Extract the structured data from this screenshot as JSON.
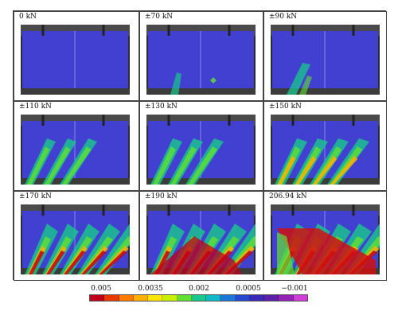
{
  "panels": [
    {
      "label": "0 kN"
    },
    {
      "label": "±70 kN"
    },
    {
      "label": "±90 kN"
    },
    {
      "label": "±110 kN"
    },
    {
      "label": "±130 kN"
    },
    {
      "label": "±150 kN"
    },
    {
      "label": "±170 kN"
    },
    {
      "label": "±190 kN"
    },
    {
      "label": "206.94 kN"
    }
  ],
  "colorbar": {
    "ticks": [
      "0.005",
      "0.0035",
      "0.002",
      "0.0005",
      "−0.001"
    ],
    "colors": [
      "#c0001a",
      "#e83a00",
      "#ff7a00",
      "#ffb000",
      "#ffe600",
      "#c8f000",
      "#62e032",
      "#18c88c",
      "#10b8c8",
      "#1c78d8",
      "#2848d0",
      "#3a28b8",
      "#5a20a8",
      "#9424b8",
      "#d43cd8"
    ]
  }
}
